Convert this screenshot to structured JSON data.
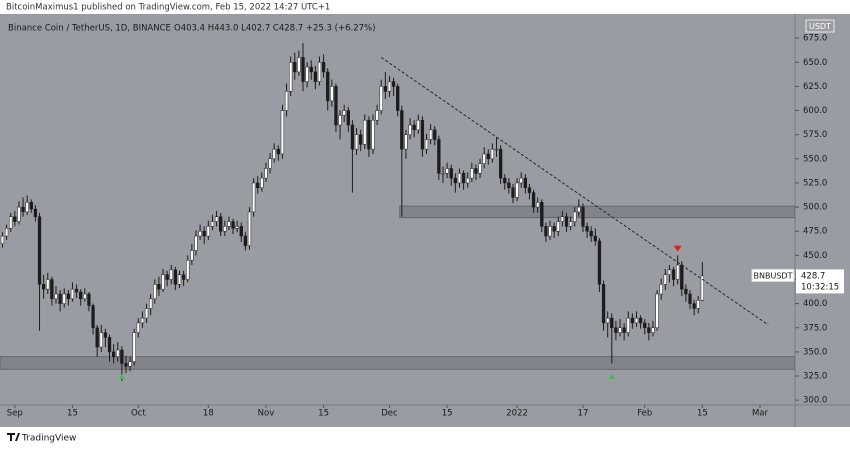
{
  "header": "BitcoinMaximus1 published on TradingView.com, Feb 15, 2022 14:27 UTC+1",
  "footer": "TradingView",
  "chart_data": {
    "type": "candlestick",
    "legend": {
      "name": "Binance Coin / TetherUS, 1D, BINANCE",
      "ohlc": "O403.4 H443.0 L402.7 C428.7 +25.3 (+6.27%)"
    },
    "currency": "USDT",
    "price_label": {
      "symbol": "BNBUSDT",
      "price": "428.7",
      "countdown": "10:32:15"
    },
    "up_color": "#ffffff",
    "down_color": "#1c1c1c",
    "background": "#9a9ca3",
    "grid": false,
    "ylim": [
      295,
      700
    ],
    "yticks": [
      {
        "value": 300,
        "label": "300.0"
      },
      {
        "value": 325,
        "label": "325.0"
      },
      {
        "value": 350,
        "label": "350.0"
      },
      {
        "value": 375,
        "label": "375.0"
      },
      {
        "value": 400,
        "label": "400.0"
      },
      {
        "value": 425,
        "label": "425.0"
      },
      {
        "value": 450,
        "label": "450.0"
      },
      {
        "value": 475,
        "label": "475.0"
      },
      {
        "value": 500,
        "label": "500.0"
      },
      {
        "value": 525,
        "label": "525.0"
      },
      {
        "value": 550,
        "label": "550.0"
      },
      {
        "value": 575,
        "label": "575.0"
      },
      {
        "value": 600,
        "label": "600.0"
      },
      {
        "value": 625,
        "label": "625.0"
      },
      {
        "value": 650,
        "label": "650.0"
      },
      {
        "value": 675,
        "label": "675.0"
      }
    ],
    "xlim": [
      -0.6,
      192.5
    ],
    "xticks": [
      {
        "value": 3,
        "label": "Sep"
      },
      {
        "value": 17,
        "label": "15"
      },
      {
        "value": 33,
        "label": "Oct"
      },
      {
        "value": 50,
        "label": "18"
      },
      {
        "value": 64,
        "label": "Nov"
      },
      {
        "value": 78,
        "label": "15"
      },
      {
        "value": 94,
        "label": "Dec"
      },
      {
        "value": 108,
        "label": "15"
      },
      {
        "value": 125,
        "label": "2022"
      },
      {
        "value": 141,
        "label": "17"
      },
      {
        "value": 156,
        "label": "Feb"
      },
      {
        "value": 170,
        "label": "15"
      },
      {
        "value": 184,
        "label": "Mar"
      }
    ],
    "zones": [
      {
        "x": [
          -0.6,
          192.5
        ],
        "y": [
          332,
          345
        ]
      },
      {
        "x": [
          96.5,
          192.5
        ],
        "y": [
          489,
          501
        ]
      }
    ],
    "trendline": {
      "x": [
        92,
        186
      ],
      "y": [
        655,
        378
      ]
    },
    "markers": [
      {
        "x": 29,
        "y": 324,
        "color": "#3fbf4a",
        "dir": "up"
      },
      {
        "x": 148,
        "y": 324,
        "color": "#3fbf4a",
        "dir": "up"
      },
      {
        "x": 164,
        "y": 457,
        "color": "#e02020",
        "dir": "down"
      }
    ],
    "ohlc": [
      [
        462,
        474,
        458,
        470
      ],
      [
        470,
        482,
        466,
        478
      ],
      [
        478,
        494,
        474,
        490
      ],
      [
        490,
        496,
        480,
        485
      ],
      [
        485,
        506,
        482,
        500
      ],
      [
        500,
        510,
        490,
        495
      ],
      [
        495,
        512,
        492,
        505
      ],
      [
        505,
        508,
        494,
        498
      ],
      [
        498,
        502,
        485,
        490
      ],
      [
        490,
        494,
        372,
        420
      ],
      [
        420,
        430,
        405,
        415
      ],
      [
        415,
        432,
        410,
        425
      ],
      [
        425,
        428,
        398,
        405
      ],
      [
        405,
        418,
        400,
        410
      ],
      [
        410,
        414,
        392,
        400
      ],
      [
        400,
        416,
        396,
        410
      ],
      [
        410,
        414,
        398,
        405
      ],
      [
        405,
        422,
        402,
        415
      ],
      [
        415,
        420,
        406,
        412
      ],
      [
        412,
        415,
        398,
        405
      ],
      [
        405,
        416,
        402,
        410
      ],
      [
        410,
        412,
        392,
        398
      ],
      [
        398,
        400,
        368,
        375
      ],
      [
        375,
        378,
        345,
        355
      ],
      [
        355,
        378,
        350,
        370
      ],
      [
        370,
        374,
        355,
        365
      ],
      [
        365,
        368,
        340,
        350
      ],
      [
        350,
        358,
        338,
        345
      ],
      [
        345,
        360,
        340,
        352
      ],
      [
        352,
        356,
        320,
        338
      ],
      [
        338,
        346,
        328,
        335
      ],
      [
        335,
        345,
        330,
        340
      ],
      [
        340,
        374,
        336,
        370
      ],
      [
        370,
        385,
        365,
        380
      ],
      [
        380,
        392,
        375,
        385
      ],
      [
        385,
        400,
        380,
        395
      ],
      [
        395,
        410,
        388,
        405
      ],
      [
        405,
        425,
        400,
        420
      ],
      [
        420,
        428,
        408,
        415
      ],
      [
        415,
        436,
        412,
        430
      ],
      [
        430,
        434,
        418,
        425
      ],
      [
        425,
        440,
        420,
        435
      ],
      [
        435,
        438,
        414,
        420
      ],
      [
        420,
        434,
        416,
        430
      ],
      [
        430,
        434,
        418,
        425
      ],
      [
        425,
        450,
        422,
        445
      ],
      [
        445,
        462,
        440,
        455
      ],
      [
        455,
        476,
        450,
        470
      ],
      [
        470,
        482,
        466,
        475
      ],
      [
        475,
        480,
        462,
        470
      ],
      [
        470,
        486,
        466,
        480
      ],
      [
        480,
        492,
        476,
        485
      ],
      [
        485,
        496,
        480,
        490
      ],
      [
        490,
        494,
        470,
        475
      ],
      [
        475,
        486,
        470,
        480
      ],
      [
        480,
        490,
        476,
        485
      ],
      [
        485,
        488,
        472,
        478
      ],
      [
        478,
        486,
        474,
        480
      ],
      [
        480,
        484,
        464,
        470
      ],
      [
        470,
        474,
        455,
        460
      ],
      [
        460,
        500,
        456,
        495
      ],
      [
        495,
        530,
        490,
        525
      ],
      [
        525,
        532,
        514,
        520
      ],
      [
        520,
        536,
        516,
        530
      ],
      [
        530,
        546,
        526,
        540
      ],
      [
        540,
        556,
        535,
        550
      ],
      [
        550,
        566,
        546,
        560
      ],
      [
        560,
        564,
        548,
        555
      ],
      [
        555,
        606,
        550,
        600
      ],
      [
        600,
        628,
        594,
        620
      ],
      [
        620,
        656,
        615,
        650
      ],
      [
        650,
        660,
        632,
        640
      ],
      [
        640,
        662,
        636,
        655
      ],
      [
        655,
        670,
        620,
        630
      ],
      [
        630,
        650,
        624,
        645
      ],
      [
        645,
        652,
        632,
        640
      ],
      [
        640,
        646,
        622,
        630
      ],
      [
        630,
        656,
        626,
        650
      ],
      [
        650,
        658,
        634,
        640
      ],
      [
        640,
        644,
        600,
        610
      ],
      [
        610,
        632,
        604,
        625
      ],
      [
        625,
        628,
        578,
        585
      ],
      [
        585,
        600,
        570,
        595
      ],
      [
        595,
        606,
        588,
        600
      ],
      [
        600,
        604,
        578,
        585
      ],
      [
        585,
        590,
        515,
        560
      ],
      [
        560,
        582,
        554,
        575
      ],
      [
        575,
        580,
        558,
        565
      ],
      [
        565,
        596,
        560,
        590
      ],
      [
        590,
        594,
        552,
        560
      ],
      [
        560,
        596,
        555,
        590
      ],
      [
        590,
        606,
        585,
        600
      ],
      [
        600,
        632,
        596,
        625
      ],
      [
        625,
        640,
        612,
        620
      ],
      [
        620,
        636,
        614,
        630
      ],
      [
        630,
        634,
        615,
        625
      ],
      [
        625,
        628,
        594,
        600
      ],
      [
        600,
        605,
        490,
        560
      ],
      [
        560,
        580,
        550,
        575
      ],
      [
        575,
        592,
        570,
        585
      ],
      [
        585,
        590,
        572,
        580
      ],
      [
        580,
        596,
        576,
        590
      ],
      [
        590,
        594,
        552,
        560
      ],
      [
        560,
        576,
        555,
        570
      ],
      [
        570,
        586,
        565,
        580
      ],
      [
        580,
        584,
        564,
        570
      ],
      [
        570,
        574,
        528,
        535
      ],
      [
        535,
        542,
        525,
        535
      ],
      [
        535,
        546,
        530,
        540
      ],
      [
        540,
        544,
        522,
        530
      ],
      [
        530,
        535,
        515,
        525
      ],
      [
        525,
        540,
        520,
        535
      ],
      [
        535,
        538,
        518,
        525
      ],
      [
        525,
        536,
        520,
        530
      ],
      [
        530,
        546,
        526,
        540
      ],
      [
        540,
        544,
        528,
        535
      ],
      [
        535,
        550,
        530,
        545
      ],
      [
        545,
        562,
        540,
        555
      ],
      [
        555,
        560,
        544,
        550
      ],
      [
        550,
        566,
        546,
        560
      ],
      [
        560,
        572,
        552,
        560
      ],
      [
        560,
        564,
        524,
        530
      ],
      [
        530,
        534,
        518,
        525
      ],
      [
        525,
        530,
        514,
        520
      ],
      [
        520,
        524,
        504,
        510
      ],
      [
        510,
        530,
        506,
        525
      ],
      [
        525,
        536,
        520,
        530
      ],
      [
        530,
        534,
        514,
        520
      ],
      [
        520,
        524,
        508,
        515
      ],
      [
        515,
        518,
        494,
        500
      ],
      [
        500,
        510,
        494,
        505
      ],
      [
        505,
        508,
        474,
        480
      ],
      [
        480,
        484,
        464,
        470
      ],
      [
        470,
        486,
        466,
        480
      ],
      [
        480,
        484,
        468,
        475
      ],
      [
        475,
        490,
        470,
        485
      ],
      [
        485,
        496,
        480,
        490
      ],
      [
        490,
        494,
        474,
        480
      ],
      [
        480,
        490,
        476,
        485
      ],
      [
        485,
        500,
        480,
        495
      ],
      [
        495,
        508,
        490,
        500
      ],
      [
        500,
        504,
        474,
        480
      ],
      [
        480,
        484,
        468,
        475
      ],
      [
        475,
        480,
        464,
        470
      ],
      [
        470,
        478,
        460,
        465
      ],
      [
        465,
        468,
        412,
        420
      ],
      [
        420,
        424,
        372,
        380
      ],
      [
        380,
        392,
        365,
        385
      ],
      [
        385,
        390,
        338,
        375
      ],
      [
        375,
        382,
        362,
        370
      ],
      [
        370,
        384,
        366,
        375
      ],
      [
        375,
        380,
        362,
        370
      ],
      [
        370,
        392,
        366,
        385
      ],
      [
        385,
        390,
        374,
        380
      ],
      [
        380,
        392,
        376,
        385
      ],
      [
        385,
        388,
        374,
        380
      ],
      [
        380,
        384,
        368,
        375
      ],
      [
        375,
        380,
        362,
        370
      ],
      [
        370,
        382,
        366,
        375
      ],
      [
        375,
        414,
        372,
        410
      ],
      [
        410,
        426,
        404,
        420
      ],
      [
        420,
        436,
        414,
        430
      ],
      [
        430,
        440,
        422,
        435
      ],
      [
        435,
        438,
        418,
        425
      ],
      [
        425,
        450,
        420,
        440
      ],
      [
        440,
        444,
        408,
        415
      ],
      [
        415,
        420,
        402,
        410
      ],
      [
        410,
        414,
        394,
        400
      ],
      [
        400,
        404,
        388,
        395
      ],
      [
        395,
        408,
        390,
        403.4
      ],
      [
        403.4,
        443,
        402.7,
        428.7
      ]
    ]
  }
}
